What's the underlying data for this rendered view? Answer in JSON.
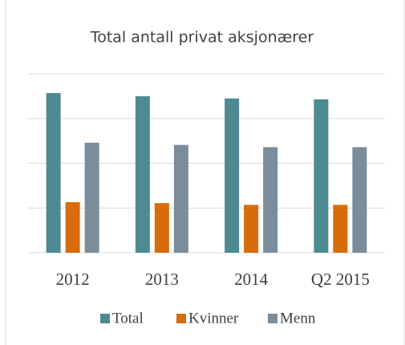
{
  "chart_data": {
    "type": "bar",
    "title": "Total antall privat aksjonærer",
    "categories": [
      "2012",
      "2013",
      "2014",
      "Q2 2015"
    ],
    "series": [
      {
        "name": "Total",
        "color": "#4e8a92",
        "values": [
          3.57,
          3.5,
          3.45,
          3.43
        ]
      },
      {
        "name": "Kvinner",
        "color": "#d86b0b",
        "values": [
          1.13,
          1.11,
          1.07,
          1.07
        ]
      },
      {
        "name": "Menn",
        "color": "#7b8c9a",
        "values": [
          2.46,
          2.41,
          2.36,
          2.36
        ]
      }
    ],
    "ylim": [
      0,
      4
    ],
    "yticks": [
      0,
      1,
      2,
      3,
      4
    ],
    "grid": true
  }
}
